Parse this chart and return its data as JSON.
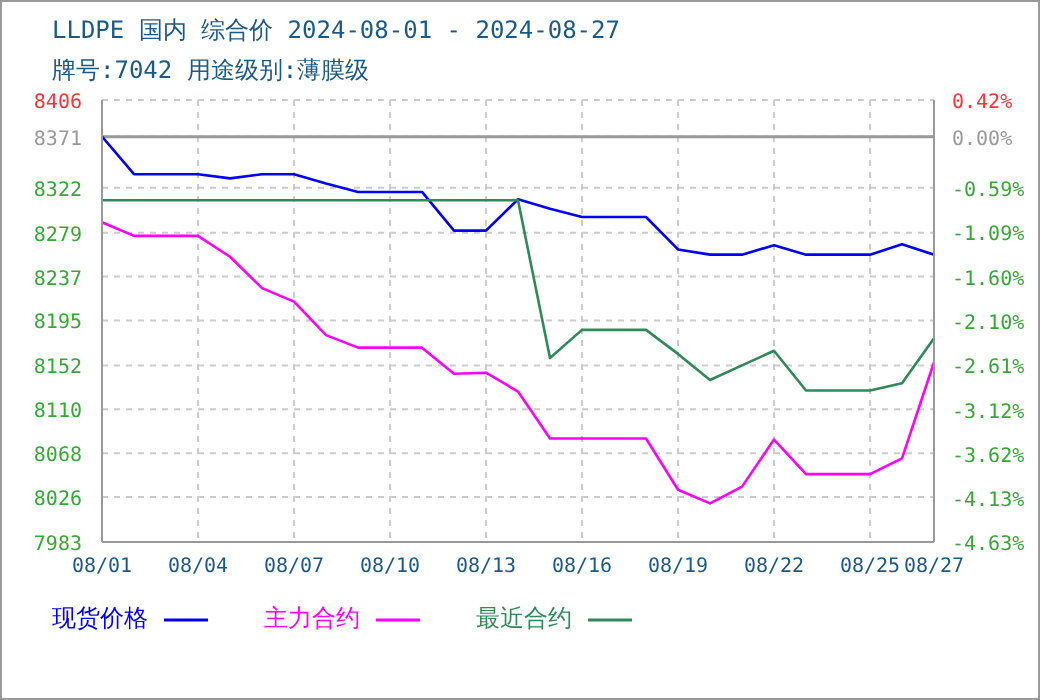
{
  "chart_data": {
    "type": "line",
    "title": "LLDPE 国内 综合价 2024-08-01 - 2024-08-27",
    "subtitle": "牌号:7042 用途级别:薄膜级",
    "x": [
      "--08-01",
      "--08-02",
      "--08-03",
      "--08-04",
      "--08-05",
      "--08-06",
      "--08-07",
      "--08-08",
      "--08-09",
      "--08-10",
      "--08-11",
      "--08-12",
      "--08-13",
      "--08-14",
      "--08-15",
      "--08-16",
      "--08-17",
      "--08-18",
      "--08-19",
      "--08-20",
      "--08-21",
      "--08-22",
      "--08-23",
      "--08-24",
      "--08-25",
      "--08-26",
      "--08-27"
    ],
    "series": [
      {
        "name": "现货价格",
        "color": "#0000ff",
        "values": [
          8371,
          8335,
          8335,
          8335,
          8331,
          8335,
          8335,
          8326,
          8318,
          8318,
          8318,
          8281,
          8281,
          8311,
          8302,
          8294,
          8294,
          8294,
          8263,
          8258,
          8258,
          8267,
          8258,
          8258,
          8258,
          8268,
          8258
        ]
      },
      {
        "name": "主力合约",
        "color": "#ff00ff",
        "values": [
          8289,
          8276,
          8276,
          8276,
          8256,
          8226,
          8213,
          8181,
          8169,
          8169,
          8169,
          8144,
          8145,
          8127,
          8082,
          8082,
          8082,
          8082,
          8033,
          8020,
          8036,
          8081,
          8048,
          8048,
          8048,
          8063,
          8155
        ]
      },
      {
        "name": "最近合约",
        "color": "#2e8b57",
        "values": [
          8310,
          8310,
          8310,
          8310,
          8310,
          8310,
          8310,
          8310,
          8310,
          8310,
          8310,
          8310,
          8310,
          8310,
          8159,
          8186,
          8186,
          8186,
          8163,
          8138,
          8152,
          8166,
          8128,
          8128,
          8128,
          8135,
          8178
        ]
      }
    ],
    "xlim": [
      "--08-01",
      "--08-27"
    ],
    "xticks": [
      {
        "value": "--08-01",
        "label": "08/01"
      },
      {
        "value": "--08-04",
        "label": "08/04"
      },
      {
        "value": "--08-07",
        "label": "08/07"
      },
      {
        "value": "--08-10",
        "label": "08/10"
      },
      {
        "value": "--08-13",
        "label": "08/13"
      },
      {
        "value": "--08-16",
        "label": "08/16"
      },
      {
        "value": "--08-19",
        "label": "08/19"
      },
      {
        "value": "--08-22",
        "label": "08/22"
      },
      {
        "value": "--08-25",
        "label": "08/25"
      },
      {
        "value": "--08-27",
        "label": "08/27"
      }
    ],
    "ylim": [
      7983,
      8406
    ],
    "yticks": [
      7983,
      8026,
      8068,
      8110,
      8152,
      8195,
      8237,
      8279,
      8322,
      8371,
      8406
    ],
    "y2lim": [
      -4.63,
      0.42
    ],
    "y2ticks": [
      {
        "value": -4.63,
        "label": "-4.63%"
      },
      {
        "value": -4.13,
        "label": "-4.13%"
      },
      {
        "value": -3.62,
        "label": "-3.62%"
      },
      {
        "value": -3.12,
        "label": "-3.12%"
      },
      {
        "value": -2.61,
        "label": "-2.61%"
      },
      {
        "value": -2.1,
        "label": "-2.10%"
      },
      {
        "value": -1.6,
        "label": "-1.60%"
      },
      {
        "value": -1.09,
        "label": "-1.09%"
      },
      {
        "value": -0.59,
        "label": "-0.59%"
      },
      {
        "value": 0,
        "label": "0.00%"
      },
      {
        "value": 0.42,
        "label": "0.42%"
      }
    ],
    "ref_lines": [
      {
        "axis": "y2",
        "value": 0,
        "color": "#999999"
      }
    ],
    "grid": true,
    "legend": "bottom",
    "marker": "none",
    "line_style": "solid"
  }
}
